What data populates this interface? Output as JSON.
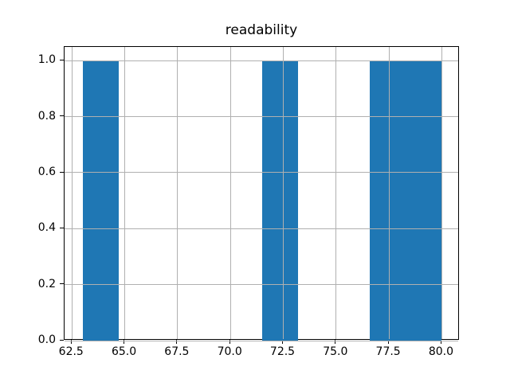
{
  "chart_data": {
    "type": "bar",
    "subtype": "histogram",
    "title": "readability",
    "bin_edges": [
      63.0,
      64.7,
      66.4,
      68.1,
      69.8,
      71.5,
      73.2,
      74.9,
      76.6,
      78.3,
      80.0
    ],
    "counts": [
      1,
      0,
      0,
      0,
      0,
      1,
      0,
      0,
      1,
      1
    ],
    "xticks": [
      62.5,
      65.0,
      67.5,
      70.0,
      72.5,
      75.0,
      77.5,
      80.0
    ],
    "xtick_labels": [
      "62.5",
      "65.0",
      "67.5",
      "70.0",
      "72.5",
      "75.0",
      "77.5",
      "80.0"
    ],
    "yticks": [
      0.0,
      0.2,
      0.4,
      0.6,
      0.8,
      1.0
    ],
    "ytick_labels": [
      "0.0",
      "0.2",
      "0.4",
      "0.6",
      "0.8",
      "1.0"
    ],
    "xlim": [
      62.15,
      80.85
    ],
    "ylim": [
      0.0,
      1.05
    ],
    "xlabel": "",
    "ylabel": "",
    "grid": true,
    "grid_over_bars": true,
    "legend": false,
    "bar_color": "#1f77b4",
    "grid_color": "#b0b0b0",
    "spine_color": "#000000",
    "background_color": "#ffffff"
  }
}
